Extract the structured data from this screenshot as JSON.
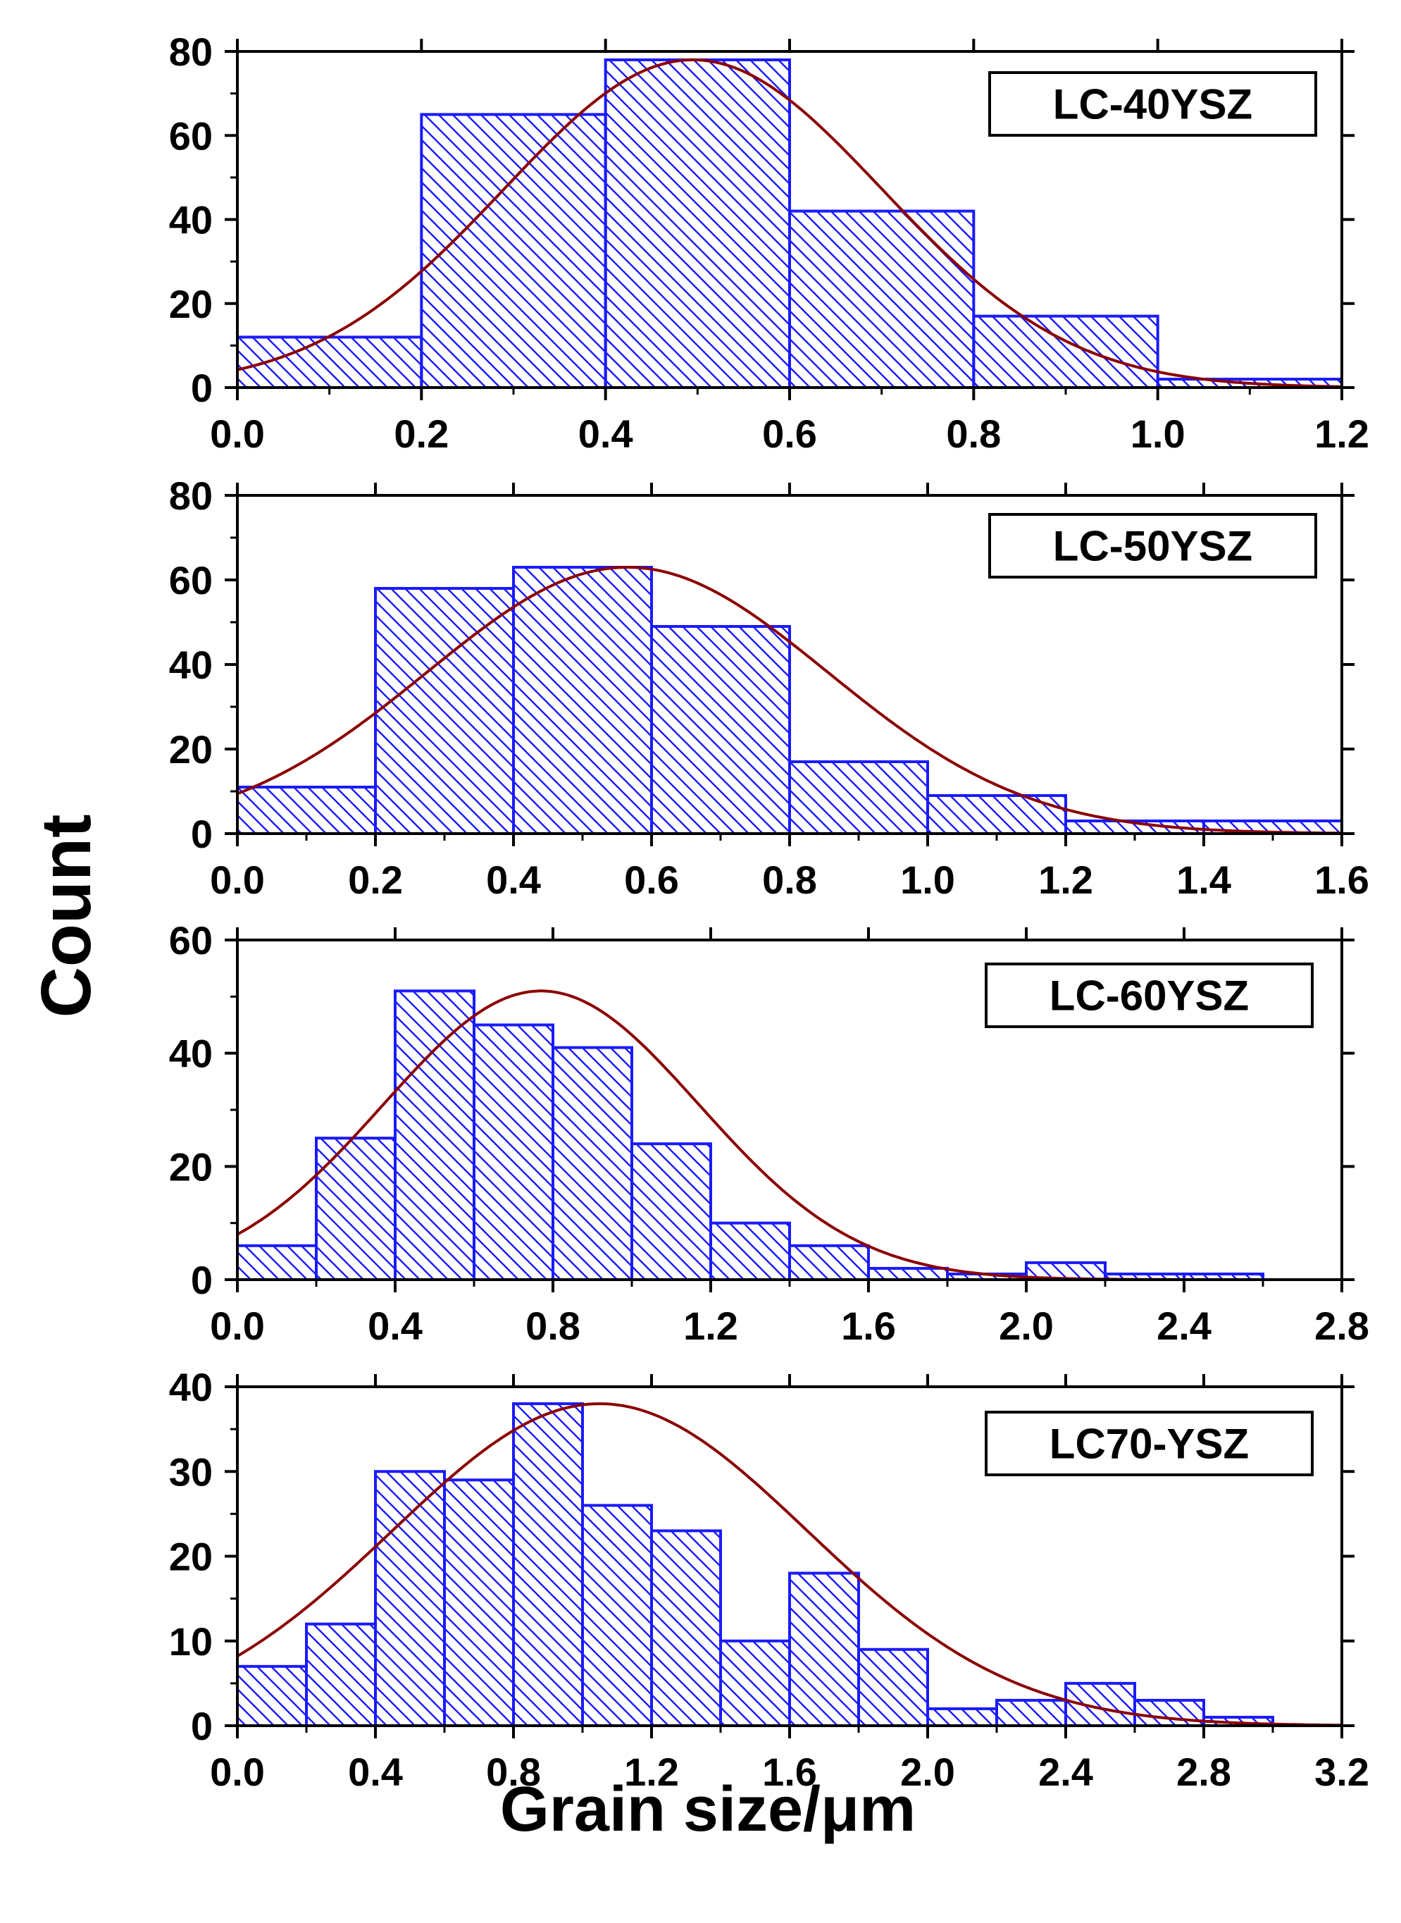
{
  "figure": {
    "ylabel": "Count",
    "xlabel": "Grain size/μm"
  },
  "colors": {
    "bar": "#1a1aff",
    "fit": "#8b0000",
    "axis": "#000000"
  },
  "chart_data": [
    {
      "type": "bar",
      "label": "LC-40YSZ",
      "bin_edges": [
        0.0,
        0.2,
        0.4,
        0.6,
        0.8,
        1.0,
        1.2
      ],
      "values": [
        12,
        65,
        78,
        42,
        17,
        2
      ],
      "fit": {
        "type": "gaussian",
        "mean": 0.495,
        "sigma": 0.205,
        "peak": 78
      },
      "xlim": [
        0.0,
        1.2
      ],
      "ylim": [
        0,
        80
      ],
      "xticks": [
        "0.0",
        "0.2",
        "0.4",
        "0.6",
        "0.8",
        "1.0",
        "1.2"
      ],
      "xtick_values": [
        0.0,
        0.2,
        0.4,
        0.6,
        0.8,
        1.0,
        1.2
      ],
      "yticks": [
        "0",
        "20",
        "40",
        "60",
        "80"
      ],
      "ytick_values": [
        0,
        20,
        40,
        60,
        80
      ]
    },
    {
      "type": "bar",
      "label": "LC-50YSZ",
      "bin_edges": [
        0.0,
        0.2,
        0.4,
        0.6,
        0.8,
        1.0,
        1.2,
        1.4,
        1.6
      ],
      "values": [
        11,
        58,
        63,
        49,
        17,
        9,
        3,
        3
      ],
      "fit": {
        "type": "gaussian",
        "mean": 0.565,
        "sigma": 0.29,
        "peak": 63
      },
      "xlim": [
        0.0,
        1.6
      ],
      "ylim": [
        0,
        80
      ],
      "xticks": [
        "0.0",
        "0.2",
        "0.4",
        "0.6",
        "0.8",
        "1.0",
        "1.2",
        "1.4",
        "1.6"
      ],
      "xtick_values": [
        0.0,
        0.2,
        0.4,
        0.6,
        0.8,
        1.0,
        1.2,
        1.4,
        1.6
      ],
      "yticks": [
        "0",
        "20",
        "40",
        "60",
        "80"
      ],
      "ytick_values": [
        0,
        20,
        40,
        60,
        80
      ]
    },
    {
      "type": "bar",
      "label": "LC-60YSZ",
      "bin_edges": [
        0.0,
        0.2,
        0.4,
        0.6,
        0.8,
        1.0,
        1.2,
        1.4,
        1.6,
        1.8,
        2.0,
        2.2,
        2.4,
        2.6
      ],
      "values": [
        6,
        25,
        51,
        45,
        41,
        24,
        10,
        6,
        2,
        1,
        3,
        1,
        1
      ],
      "fit": {
        "type": "gaussian",
        "mean": 0.77,
        "sigma": 0.4,
        "peak": 51
      },
      "xlim": [
        0.0,
        2.8
      ],
      "ylim": [
        0,
        60
      ],
      "xticks": [
        "0.0",
        "0.4",
        "0.8",
        "1.2",
        "1.6",
        "2.0",
        "2.4",
        "2.8"
      ],
      "xtick_values": [
        0.0,
        0.4,
        0.8,
        1.2,
        1.6,
        2.0,
        2.4,
        2.8
      ],
      "yticks": [
        "0",
        "20",
        "40",
        "60"
      ],
      "ytick_values": [
        0,
        20,
        40,
        60
      ]
    },
    {
      "type": "bar",
      "label": "LC70-YSZ",
      "bin_edges": [
        0.0,
        0.2,
        0.4,
        0.6,
        0.8,
        1.0,
        1.2,
        1.4,
        1.6,
        1.8,
        2.0,
        2.2,
        2.4,
        2.6,
        2.8,
        3.0
      ],
      "values": [
        7,
        12,
        30,
        29,
        38,
        26,
        23,
        10,
        18,
        9,
        2,
        3,
        5,
        3,
        1
      ],
      "fit": {
        "type": "gaussian",
        "mean": 1.05,
        "sigma": 0.6,
        "peak": 38
      },
      "xlim": [
        0.0,
        3.2
      ],
      "ylim": [
        0,
        40
      ],
      "xticks": [
        "0.0",
        "0.4",
        "0.8",
        "1.2",
        "1.6",
        "2.0",
        "2.4",
        "2.8",
        "3.2"
      ],
      "xtick_values": [
        0.0,
        0.4,
        0.8,
        1.2,
        1.6,
        2.0,
        2.4,
        2.8,
        3.2
      ],
      "yticks": [
        "0",
        "10",
        "20",
        "30",
        "40"
      ],
      "ytick_values": [
        0,
        10,
        20,
        30,
        40
      ]
    }
  ]
}
